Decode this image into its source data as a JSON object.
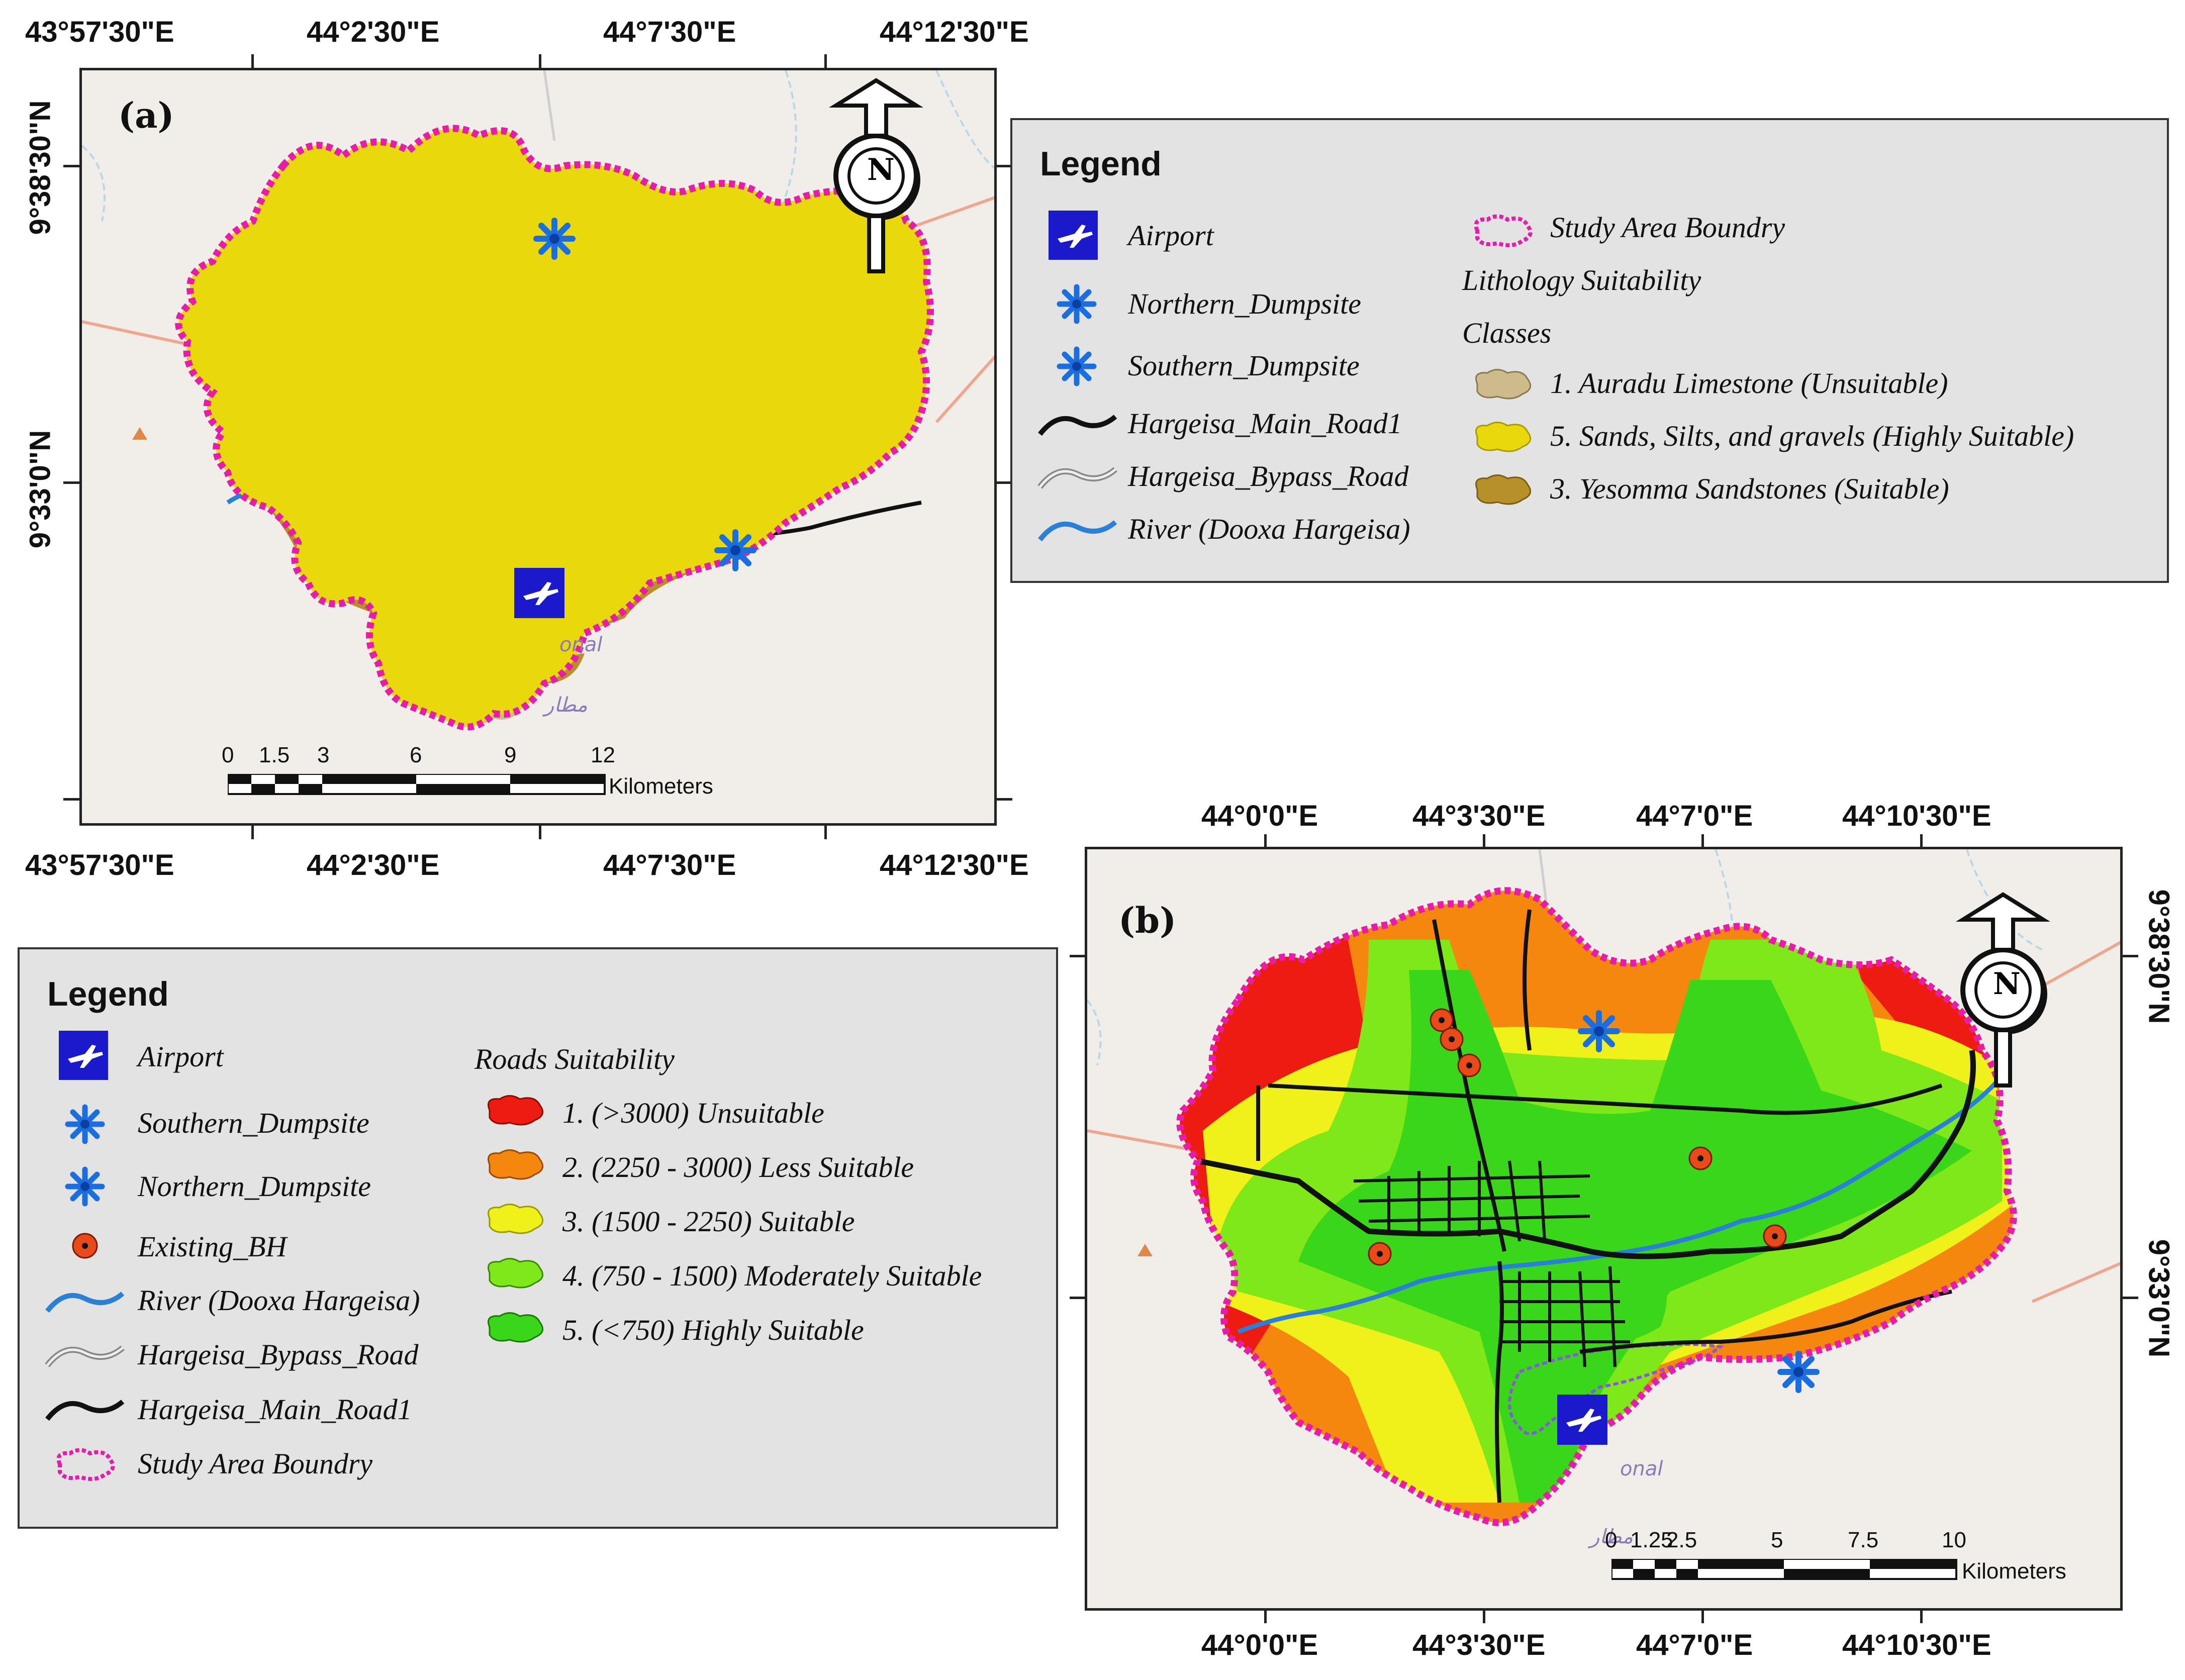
{
  "panel_a": {
    "label": "(a)",
    "lon_ticks_top": [
      "43°57'30\"E",
      "44°2'30\"E",
      "44°7'30\"E",
      "44°12'30\"E"
    ],
    "lon_ticks_bottom": [
      "43°57'30\"E",
      "44°2'30\"E",
      "44°7'30\"E",
      "44°12'30\"E"
    ],
    "lat_ticks_left": [
      "9°38'30\"N",
      "9°33'0\"N"
    ],
    "north_arrow": "N",
    "map_text": "onal",
    "map_text_ar": "مطار",
    "scale": {
      "numbers": [
        "0",
        "1.5",
        "3",
        "6",
        "9",
        "12"
      ],
      "unit": "Kilometers"
    },
    "legend": {
      "title": "Legend",
      "items_left": [
        {
          "icon": "airport-icon",
          "label": "Airport"
        },
        {
          "icon": "dumpsite-icon",
          "label": "Northern_Dumpsite"
        },
        {
          "icon": "dumpsite-icon",
          "label": "Southern_Dumpsite"
        },
        {
          "icon": "main-road-line-icon",
          "label": "Hargeisa_Main_Road1"
        },
        {
          "icon": "bypass-road-line-icon",
          "label": "Hargeisa_Bypass_Road"
        },
        {
          "icon": "river-line-icon",
          "label": "River (Dooxa Hargeisa)"
        }
      ],
      "boundary_label": "Study Area Boundry",
      "group_title_1": "Lithology Suitability",
      "group_title_2": "Classes",
      "classes": [
        {
          "label": "1. Auradu Limestone (Unsuitable)",
          "color": "#cdbb8c"
        },
        {
          "label": "5. Sands, Silts, and gravels (Highly Suitable)",
          "color": "#e8d80c"
        },
        {
          "label": "3. Yesomma Sandstones (Suitable)",
          "color": "#b8902a"
        }
      ]
    }
  },
  "panel_b": {
    "label": "(b)",
    "lon_ticks_top": [
      "44°0'0\"E",
      "44°3'30\"E",
      "44°7'0\"E",
      "44°10'30\"E"
    ],
    "lon_ticks_bottom": [
      "44°0'0\"E",
      "44°3'30\"E",
      "44°7'0\"E",
      "44°10'30\"E"
    ],
    "lat_ticks_right": [
      "9°38'30\"N",
      "9°33'0\"N"
    ],
    "north_arrow": "N",
    "map_text": "onal",
    "map_text_ar": "مطار",
    "scale": {
      "numbers": [
        "0",
        "1.25",
        "2.5",
        "5",
        "7.5",
        "10"
      ],
      "unit": "Kilometers"
    },
    "legend": {
      "title": "Legend",
      "items_left": [
        {
          "icon": "airport-icon",
          "label": "Airport"
        },
        {
          "icon": "dumpsite-icon",
          "label": "Southern_Dumpsite"
        },
        {
          "icon": "dumpsite-icon",
          "label": "Northern_Dumpsite"
        },
        {
          "icon": "borehole-icon",
          "label": "Existing_BH"
        },
        {
          "icon": "river-line-icon",
          "label": "River (Dooxa Hargeisa)"
        },
        {
          "icon": "bypass-road-line-icon",
          "label": "Hargeisa_Bypass_Road"
        },
        {
          "icon": "main-road-line-icon",
          "label": "Hargeisa_Main_Road1"
        },
        {
          "icon": "boundary-icon",
          "label": "Study Area Boundry"
        }
      ],
      "group_title": "Roads Suitability",
      "classes": [
        {
          "label": "1. (>3000) Unsuitable",
          "color": "#ee1c10"
        },
        {
          "label": "2. (2250 - 3000)  Less Suitable",
          "color": "#f5870f"
        },
        {
          "label": "3. (1500 - 2250) Suitable",
          "color": "#f0f01a"
        },
        {
          "label": "4. (750 - 1500) Moderately Suitable",
          "color": "#7ee818"
        },
        {
          "label": "5. (<750) Highly Suitable",
          "color": "#3ad61a"
        }
      ]
    }
  },
  "colors": {
    "boundary": "#e81ca8",
    "river": "#2a80d8",
    "road": "#111111",
    "airport": "#1a1acc",
    "dumpsite": "#1a6ee0",
    "borehole": "#e84a1a",
    "basemap": "#f1eeea"
  }
}
